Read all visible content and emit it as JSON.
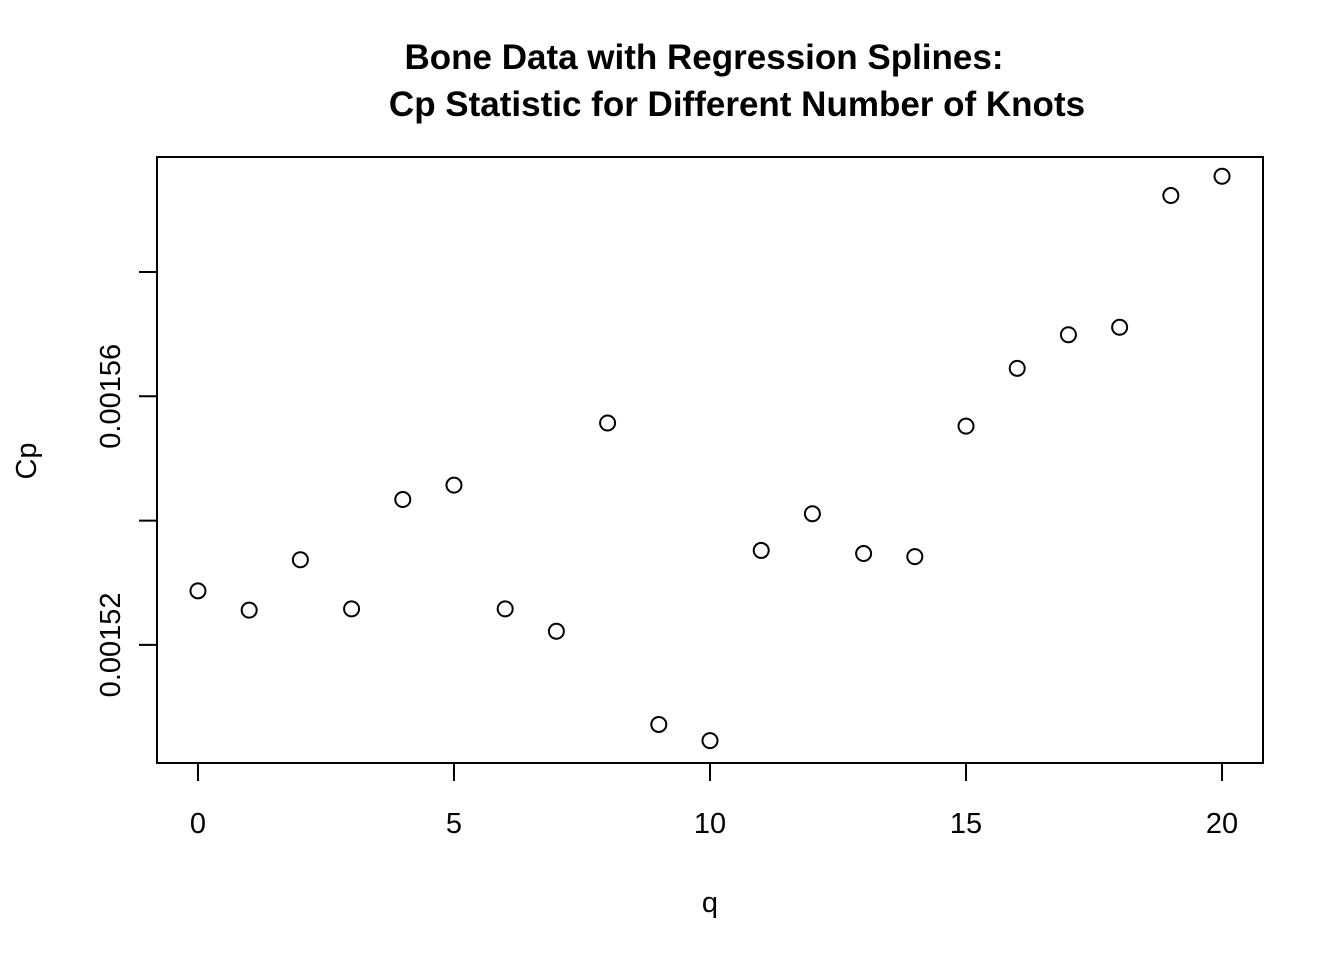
{
  "chart_data": {
    "type": "scatter",
    "title": [
      "Bone Data with Regression Splines:",
      "Cp Statistic for Different Number of Knots"
    ],
    "xlabel": "q",
    "ylabel": "Cp",
    "x": [
      0,
      1,
      2,
      3,
      4,
      5,
      6,
      7,
      8,
      9,
      10,
      11,
      12,
      13,
      14,
      15,
      16,
      17,
      18,
      19,
      20
    ],
    "y": [
      0.0015287,
      0.0015256,
      0.0015337,
      0.0015258,
      0.0015434,
      0.0015457,
      0.0015258,
      0.0015222,
      0.0015557,
      0.0015072,
      0.0015046,
      0.0015352,
      0.0015411,
      0.0015347,
      0.0015342,
      0.0015552,
      0.0015645,
      0.0015699,
      0.0015711,
      0.0015923,
      0.0015954
    ],
    "xlim": [
      -0.8,
      20.8
    ],
    "ylim": [
      0.001501,
      0.0015985
    ],
    "xticks": [
      0,
      5,
      10,
      15,
      20
    ],
    "xtick_labels": [
      "0",
      "5",
      "10",
      "15",
      "20"
    ],
    "yticks": [
      0.00152,
      0.00154,
      0.00156,
      0.00158
    ],
    "ytick_labels": [
      "0.00152",
      "",
      "0.00156",
      ""
    ],
    "grid": false,
    "legend": null,
    "marker": "open-circle",
    "colors": {
      "points": "#000000",
      "axes": "#000000",
      "background": "#ffffff"
    }
  }
}
